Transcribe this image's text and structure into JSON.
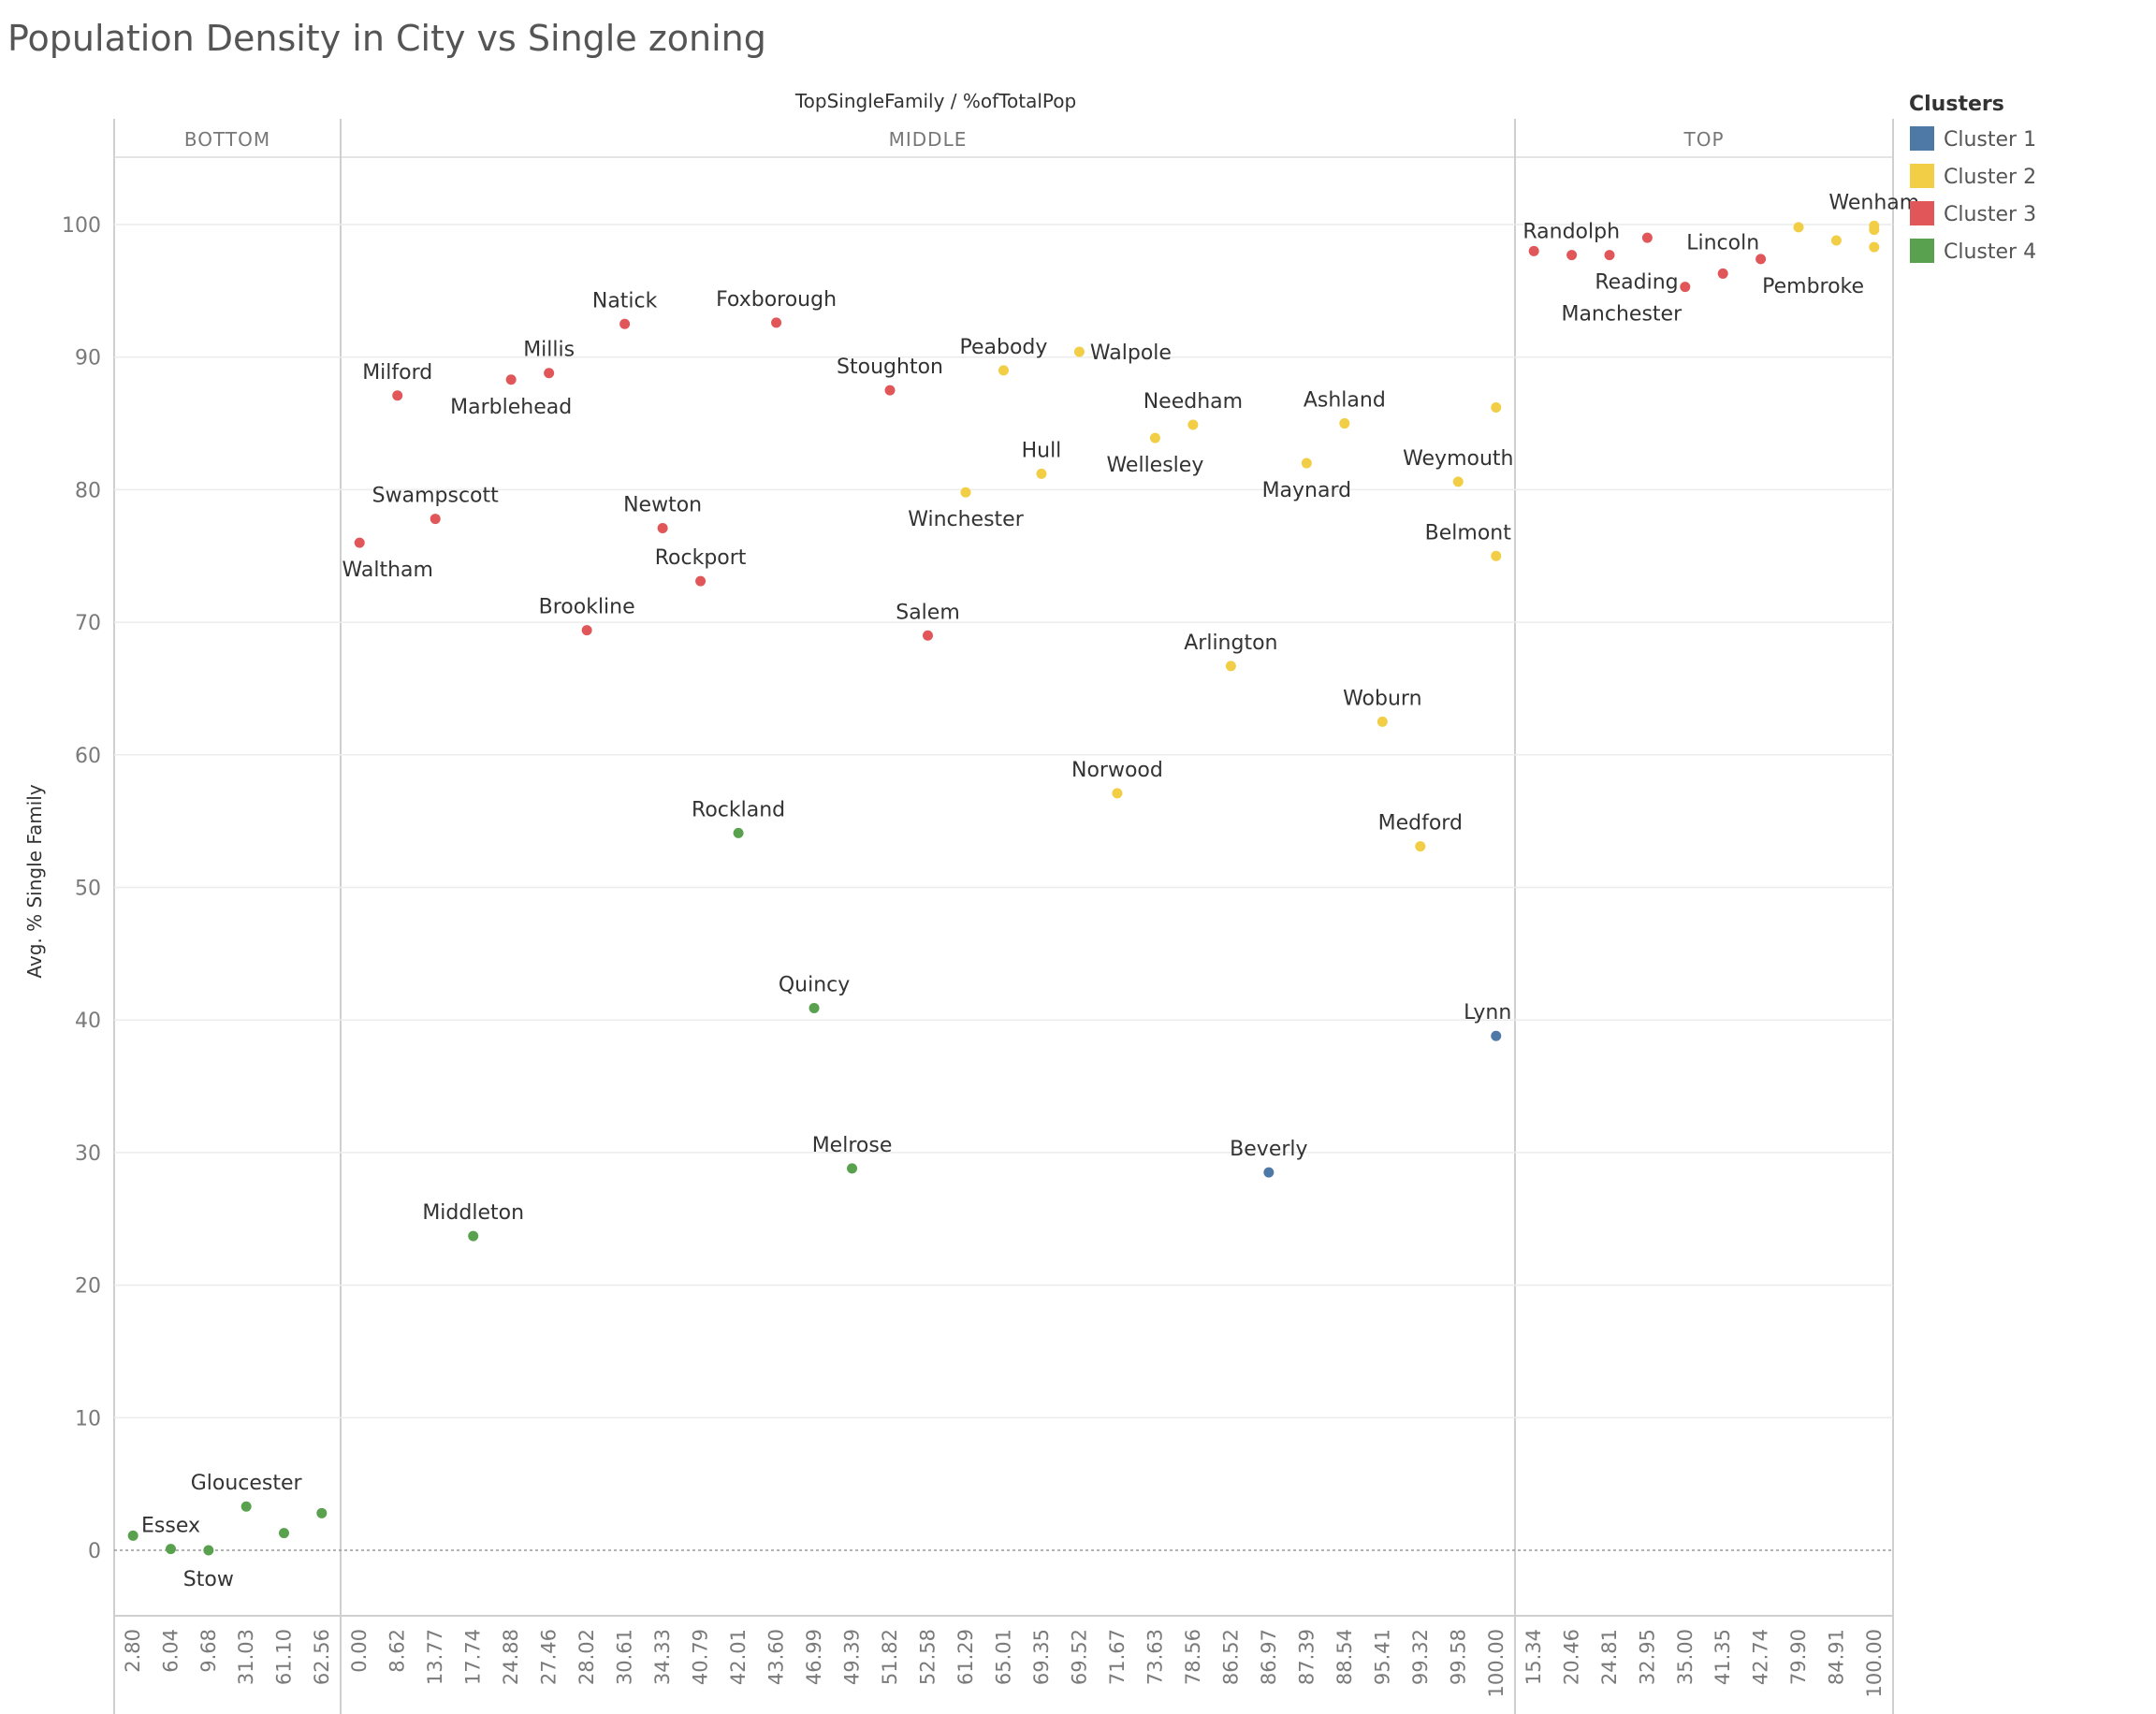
{
  "title": "Population Density in City vs Single zoning",
  "column_header": "TopSingleFamily / %ofTotalPop",
  "legend": {
    "title": "Clusters",
    "items": [
      {
        "label": "Cluster 1",
        "color": "#4e79a7"
      },
      {
        "label": "Cluster 2",
        "color": "#f1ce46"
      },
      {
        "label": "Cluster 3",
        "color": "#e15759"
      },
      {
        "label": "Cluster 4",
        "color": "#59a14f"
      }
    ]
  },
  "chart_data": {
    "type": "scatter",
    "title": "Population Density in City vs Single zoning",
    "xlabel": "TopSingleFamily / %ofTotalPop",
    "ylabel": "Avg. % Single Family",
    "ylim": [
      -5,
      105
    ],
    "yticks": [
      0,
      10,
      20,
      30,
      40,
      50,
      60,
      70,
      80,
      90,
      100
    ],
    "grid": true,
    "legend_position": "right",
    "panels": [
      {
        "name": "BOTTOM",
        "categories": [
          "2.80",
          "6.04",
          "9.68",
          "31.03",
          "61.10",
          "62.56"
        ]
      },
      {
        "name": "MIDDLE",
        "categories": [
          "0.00",
          "8.62",
          "13.77",
          "17.74",
          "24.88",
          "27.46",
          "28.02",
          "30.61",
          "34.33",
          "40.79",
          "42.01",
          "43.60",
          "46.99",
          "49.39",
          "51.82",
          "52.58",
          "61.29",
          "65.01",
          "69.35",
          "69.52",
          "71.67",
          "73.63",
          "78.56",
          "86.52",
          "86.97",
          "87.39",
          "88.54",
          "95.41",
          "99.32",
          "99.58",
          "100.00"
        ]
      },
      {
        "name": "TOP",
        "categories": [
          "15.34",
          "20.46",
          "24.81",
          "32.95",
          "35.00",
          "41.35",
          "42.74",
          "79.90",
          "84.91",
          "100.00"
        ]
      }
    ],
    "points": [
      {
        "panel": 0,
        "x": "2.80",
        "y": 1.1,
        "cluster": 4,
        "label": ""
      },
      {
        "panel": 0,
        "x": "6.04",
        "y": 0.1,
        "cluster": 4,
        "label": "Essex"
      },
      {
        "panel": 0,
        "x": "9.68",
        "y": 0.0,
        "cluster": 4,
        "label": "Stow"
      },
      {
        "panel": 0,
        "x": "31.03",
        "y": 3.3,
        "cluster": 4,
        "label": "Gloucester"
      },
      {
        "panel": 0,
        "x": "61.10",
        "y": 1.3,
        "cluster": 4,
        "label": ""
      },
      {
        "panel": 0,
        "x": "62.56",
        "y": 2.8,
        "cluster": 4,
        "label": ""
      },
      {
        "panel": 1,
        "x": "0.00",
        "y": 76.0,
        "cluster": 3,
        "label": "Waltham"
      },
      {
        "panel": 1,
        "x": "8.62",
        "y": 87.1,
        "cluster": 3,
        "label": "Milford"
      },
      {
        "panel": 1,
        "x": "13.77",
        "y": 77.8,
        "cluster": 3,
        "label": "Swampscott"
      },
      {
        "panel": 1,
        "x": "17.74",
        "y": 23.7,
        "cluster": 4,
        "label": "Middleton"
      },
      {
        "panel": 1,
        "x": "24.88",
        "y": 88.3,
        "cluster": 3,
        "label": "Marblehead"
      },
      {
        "panel": 1,
        "x": "27.46",
        "y": 88.8,
        "cluster": 3,
        "label": "Millis"
      },
      {
        "panel": 1,
        "x": "28.02",
        "y": 69.4,
        "cluster": 3,
        "label": "Brookline"
      },
      {
        "panel": 1,
        "x": "30.61",
        "y": 92.5,
        "cluster": 3,
        "label": "Natick"
      },
      {
        "panel": 1,
        "x": "34.33",
        "y": 77.1,
        "cluster": 3,
        "label": "Newton"
      },
      {
        "panel": 1,
        "x": "40.79",
        "y": 73.1,
        "cluster": 3,
        "label": "Rockport"
      },
      {
        "panel": 1,
        "x": "42.01",
        "y": 54.1,
        "cluster": 4,
        "label": "Rockland"
      },
      {
        "panel": 1,
        "x": "43.60",
        "y": 92.6,
        "cluster": 3,
        "label": "Foxborough"
      },
      {
        "panel": 1,
        "x": "46.99",
        "y": 40.9,
        "cluster": 4,
        "label": "Quincy"
      },
      {
        "panel": 1,
        "x": "49.39",
        "y": 28.8,
        "cluster": 4,
        "label": "Melrose"
      },
      {
        "panel": 1,
        "x": "51.82",
        "y": 87.5,
        "cluster": 3,
        "label": "Stoughton"
      },
      {
        "panel": 1,
        "x": "52.58",
        "y": 69.0,
        "cluster": 3,
        "label": "Salem"
      },
      {
        "panel": 1,
        "x": "61.29",
        "y": 79.8,
        "cluster": 2,
        "label": "Winchester"
      },
      {
        "panel": 1,
        "x": "65.01",
        "y": 89.0,
        "cluster": 2,
        "label": "Peabody"
      },
      {
        "panel": 1,
        "x": "69.35",
        "y": 81.2,
        "cluster": 2,
        "label": "Hull"
      },
      {
        "panel": 1,
        "x": "69.52",
        "y": 90.4,
        "cluster": 2,
        "label": "Walpole"
      },
      {
        "panel": 1,
        "x": "71.67",
        "y": 57.1,
        "cluster": 2,
        "label": "Norwood"
      },
      {
        "panel": 1,
        "x": "73.63",
        "y": 83.9,
        "cluster": 2,
        "label": "Wellesley"
      },
      {
        "panel": 1,
        "x": "78.56",
        "y": 84.9,
        "cluster": 2,
        "label": "Needham"
      },
      {
        "panel": 1,
        "x": "86.52",
        "y": 66.7,
        "cluster": 2,
        "label": "Arlington"
      },
      {
        "panel": 1,
        "x": "86.97",
        "y": 28.5,
        "cluster": 1,
        "label": "Beverly"
      },
      {
        "panel": 1,
        "x": "87.39",
        "y": 82.0,
        "cluster": 2,
        "label": "Maynard"
      },
      {
        "panel": 1,
        "x": "88.54",
        "y": 85.0,
        "cluster": 2,
        "label": "Ashland"
      },
      {
        "panel": 1,
        "x": "95.41",
        "y": 62.5,
        "cluster": 2,
        "label": "Woburn"
      },
      {
        "panel": 1,
        "x": "99.32",
        "y": 53.1,
        "cluster": 2,
        "label": "Medford"
      },
      {
        "panel": 1,
        "x": "99.58",
        "y": 80.6,
        "cluster": 2,
        "label": "Weymouth"
      },
      {
        "panel": 1,
        "x": "100.00",
        "y": 86.2,
        "cluster": 2,
        "label": ""
      },
      {
        "panel": 1,
        "x": "100.00",
        "y": 75.0,
        "cluster": 2,
        "label": "Belmont"
      },
      {
        "panel": 1,
        "x": "100.00",
        "y": 38.8,
        "cluster": 1,
        "label": "Lynn"
      },
      {
        "panel": 2,
        "x": "15.34",
        "y": 98.0,
        "cluster": 3,
        "label": "Randolph"
      },
      {
        "panel": 2,
        "x": "20.46",
        "y": 97.7,
        "cluster": 3,
        "label": ""
      },
      {
        "panel": 2,
        "x": "24.81",
        "y": 97.7,
        "cluster": 3,
        "label": "Reading"
      },
      {
        "panel": 2,
        "x": "32.95",
        "y": 99.0,
        "cluster": 3,
        "label": ""
      },
      {
        "panel": 2,
        "x": "35.00",
        "y": 95.3,
        "cluster": 3,
        "label": "Manchester"
      },
      {
        "panel": 2,
        "x": "41.35",
        "y": 96.3,
        "cluster": 3,
        "label": "Lincoln"
      },
      {
        "panel": 2,
        "x": "42.74",
        "y": 97.4,
        "cluster": 3,
        "label": "Pembroke"
      },
      {
        "panel": 2,
        "x": "79.90",
        "y": 99.8,
        "cluster": 2,
        "label": ""
      },
      {
        "panel": 2,
        "x": "84.91",
        "y": 98.8,
        "cluster": 2,
        "label": ""
      },
      {
        "panel": 2,
        "x": "100.00",
        "y": 99.9,
        "cluster": 2,
        "label": "Wenham"
      },
      {
        "panel": 2,
        "x": "100.00",
        "y": 99.6,
        "cluster": 2,
        "label": ""
      },
      {
        "panel": 2,
        "x": "100.00",
        "y": 98.3,
        "cluster": 2,
        "label": ""
      }
    ]
  }
}
